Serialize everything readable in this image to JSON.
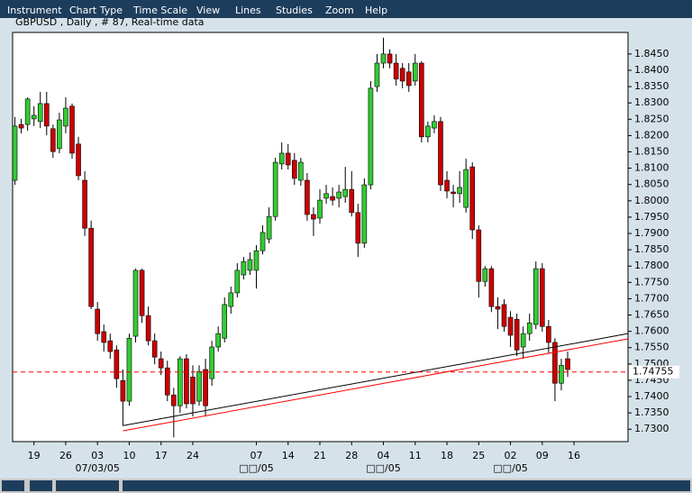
{
  "menu": [
    "Instrument",
    "Chart Type",
    "Time Scale",
    "View",
    "Lines",
    "Studies",
    "Zoom",
    "Help"
  ],
  "chart_data": {
    "type": "candlestick",
    "title": "GBPUSD , Daily , # 87, Real-time data",
    "categories": [
      null,
      null,
      null,
      "19",
      null,
      null,
      null,
      null,
      "26",
      null,
      null,
      null,
      null,
      "03",
      null,
      null,
      null,
      null,
      "10",
      null,
      null,
      null,
      null,
      "17",
      null,
      null,
      null,
      null,
      "24",
      null,
      null,
      null,
      null,
      null,
      null,
      null,
      null,
      null,
      "07",
      null,
      null,
      null,
      null,
      "14",
      null,
      null,
      null,
      null,
      "21",
      null,
      null,
      null,
      null,
      "28",
      null,
      null,
      null,
      null,
      "04",
      null,
      null,
      null,
      null,
      "11",
      null,
      null,
      null,
      null,
      "18",
      null,
      null,
      null,
      null,
      "25",
      null,
      null,
      null,
      null,
      "02",
      null,
      null,
      null,
      null,
      "09",
      null,
      null,
      null,
      null,
      "16",
      null,
      null,
      null,
      null,
      null,
      null,
      null,
      null
    ],
    "categories2": [
      null,
      null,
      null,
      null,
      null,
      null,
      null,
      null,
      null,
      null,
      null,
      null,
      null,
      "07/03/05",
      null,
      null,
      null,
      null,
      null,
      null,
      null,
      null,
      null,
      null,
      null,
      null,
      null,
      null,
      null,
      null,
      null,
      null,
      null,
      null,
      null,
      null,
      null,
      null,
      "□□/05",
      null,
      null,
      null,
      null,
      null,
      null,
      null,
      null,
      null,
      null,
      null,
      null,
      null,
      null,
      null,
      null,
      null,
      null,
      null,
      "□□/05",
      null,
      null,
      null,
      null,
      null,
      null,
      null,
      null,
      null,
      null,
      null,
      null,
      null,
      null,
      null,
      null,
      null,
      null,
      null,
      "□□/05",
      null,
      null,
      null,
      null,
      null,
      null,
      null,
      null,
      null,
      null,
      null,
      null,
      null,
      null,
      null,
      null,
      null,
      null,
      null
    ],
    "open": [
      1.8063,
      1.8234,
      1.8234,
      1.8251,
      1.8243,
      1.8298,
      1.8221,
      1.816,
      1.8229,
      1.829,
      1.8174,
      1.8063,
      1.7916,
      1.7668,
      1.7599,
      1.7571,
      1.7543,
      1.7449,
      1.7386,
      1.7585,
      1.7787,
      1.7648,
      1.7571,
      1.7516,
      1.7488,
      1.7405,
      1.7372,
      1.7516,
      1.746,
      1.7386,
      1.7483,
      1.7455,
      1.7552,
      1.7579,
      1.7676,
      1.7718,
      1.7773,
      1.7787,
      1.7787,
      1.7847,
      1.7883,
      1.7952,
      1.8113,
      1.8146,
      1.8124,
      1.8063,
      1.8063,
      1.7958,
      1.7947,
      1.8008,
      1.8013,
      1.8008,
      1.8013,
      1.8035,
      1.7964,
      1.787,
      1.8049,
      1.835,
      1.8422,
      1.845,
      1.8422,
      1.8406,
      1.8395,
      1.8367,
      1.8422,
      1.8196,
      1.8223,
      1.8243,
      1.8063,
      1.8027,
      1.8022,
      1.798,
      1.8104,
      1.7911,
      1.7753,
      1.7792,
      1.7676,
      1.7682,
      1.7643,
      1.7637,
      1.7552,
      1.7593,
      1.7621,
      1.7792,
      1.7615,
      1.7566,
      1.7441,
      1.7516,
      null,
      null,
      null,
      null,
      null,
      null,
      null,
      null,
      null
    ],
    "high": [
      1.8257,
      1.8251,
      1.8317,
      1.829,
      1.8334,
      1.8334,
      1.8234,
      1.827,
      1.8317,
      1.8298,
      1.8196,
      1.8091,
      1.7939,
      1.769,
      1.7621,
      1.7593,
      1.7557,
      1.7483,
      1.7593,
      1.7792,
      1.7792,
      1.7676,
      1.7593,
      1.7538,
      1.751,
      1.7427,
      1.7524,
      1.753,
      1.7496,
      1.7496,
      1.7516,
      1.7571,
      1.7615,
      1.7704,
      1.7737,
      1.7809,
      1.7828,
      1.7842,
      1.7864,
      1.7925,
      1.798,
      1.8132,
      1.8179,
      1.8174,
      1.8146,
      1.8132,
      1.8085,
      1.798,
      1.8035,
      1.8049,
      1.8041,
      1.8049,
      1.8104,
      1.8091,
      1.7991,
      1.8069,
      1.8367,
      1.845,
      1.85,
      1.8464,
      1.845,
      1.8422,
      1.8422,
      1.845,
      1.8428,
      1.8243,
      1.8262,
      1.8257,
      1.8091,
      1.8049,
      1.8091,
      1.8129,
      1.8118,
      1.7925,
      1.78,
      1.78,
      1.7704,
      1.7698,
      1.7662,
      1.7654,
      1.7615,
      1.7654,
      1.7814,
      1.7809,
      1.7635,
      1.7579,
      1.7516,
      1.7538,
      null,
      null,
      null,
      null,
      null,
      null,
      null,
      null,
      null
    ],
    "low": [
      1.8049,
      1.8207,
      1.8215,
      1.8229,
      1.8223,
      1.8201,
      1.8132,
      1.8146,
      1.8207,
      1.8129,
      1.8063,
      1.7892,
      1.7668,
      1.7571,
      1.7538,
      1.7516,
      1.7427,
      1.7311,
      1.7372,
      1.7566,
      1.7626,
      1.7557,
      1.7499,
      1.7466,
      1.7386,
      1.7275,
      1.735,
      1.7364,
      1.7339,
      1.7372,
      1.7339,
      1.7433,
      1.7538,
      1.7566,
      1.7654,
      1.7704,
      1.7759,
      1.7773,
      1.7731,
      1.7836,
      1.787,
      1.7939,
      1.8096,
      1.8096,
      1.8049,
      1.8046,
      1.7939,
      1.7892,
      1.793,
      1.7991,
      1.7986,
      1.798,
      1.7994,
      1.7952,
      1.7828,
      1.7856,
      1.8035,
      1.8334,
      1.8406,
      1.8406,
      1.8353,
      1.8345,
      1.8334,
      1.8353,
      1.8179,
      1.8179,
      1.8207,
      1.803,
      1.8008,
      1.798,
      1.7994,
      1.7964,
      1.7883,
      1.7704,
      1.7737,
      1.7659,
      1.7607,
      1.7599,
      1.7552,
      1.7524,
      1.7516,
      1.7571,
      1.7607,
      1.7599,
      1.7532,
      1.7386,
      1.7419,
      1.746,
      null,
      null,
      null,
      null,
      null,
      null,
      null,
      null,
      null
    ],
    "close": [
      1.8229,
      1.8223,
      1.8312,
      1.8262,
      1.8298,
      1.8229,
      1.8151,
      1.8248,
      1.8284,
      1.8146,
      1.8077,
      1.7916,
      1.7676,
      1.7593,
      1.7566,
      1.7538,
      1.7455,
      1.7386,
      1.7579,
      1.7787,
      1.7648,
      1.7571,
      1.7521,
      1.7488,
      1.7405,
      1.7372,
      1.7516,
      1.7378,
      1.7378,
      1.7477,
      1.7372,
      1.7552,
      1.7593,
      1.7682,
      1.7718,
      1.7787,
      1.7814,
      1.782,
      1.7847,
      1.7903,
      1.7952,
      1.8118,
      1.8146,
      1.811,
      1.8069,
      1.8118,
      1.7958,
      1.7944,
      1.8002,
      1.8022,
      1.8002,
      1.8027,
      1.8035,
      1.7964,
      1.787,
      1.8049,
      1.8345,
      1.8422,
      1.845,
      1.8422,
      1.8373,
      1.8367,
      1.8353,
      1.8422,
      1.8196,
      1.8229,
      1.8243,
      1.8049,
      1.803,
      1.8022,
      1.8041,
      1.8096,
      1.7911,
      1.7753,
      1.7792,
      1.7676,
      1.7668,
      1.7615,
      1.7588,
      1.7543,
      1.7593,
      1.7626,
      1.7792,
      1.7615,
      1.7566,
      1.7441,
      1.7496,
      1.7483,
      null,
      null,
      null,
      null,
      null,
      null,
      null,
      null,
      null
    ],
    "up_color": "#33cc33",
    "down_color": "#cc0000",
    "ylim": [
      1.7262,
      1.8516
    ],
    "yticks": [
      {
        "value": 1.73,
        "label": "1.7300"
      },
      {
        "value": 1.735,
        "label": "1.7350"
      },
      {
        "value": 1.74,
        "label": "1.7400"
      },
      {
        "value": 1.745,
        "label": "1.7450"
      },
      {
        "value": 1.75,
        "label": "1.7500"
      },
      {
        "value": 1.755,
        "label": "1.7550"
      },
      {
        "value": 1.76,
        "label": "1.7600"
      },
      {
        "value": 1.765,
        "label": "1.7650"
      },
      {
        "value": 1.77,
        "label": "1.7700"
      },
      {
        "value": 1.775,
        "label": "1.7750"
      },
      {
        "value": 1.78,
        "label": "1.7800"
      },
      {
        "value": 1.785,
        "label": "1.7850"
      },
      {
        "value": 1.79,
        "label": "1.7900"
      },
      {
        "value": 1.795,
        "label": "1.7950"
      },
      {
        "value": 1.8,
        "label": "1.8000"
      },
      {
        "value": 1.805,
        "label": "1.8050"
      },
      {
        "value": 1.81,
        "label": "1.8100"
      },
      {
        "value": 1.815,
        "label": "1.8150"
      },
      {
        "value": 1.82,
        "label": "1.8200"
      },
      {
        "value": 1.825,
        "label": "1.8250"
      },
      {
        "value": 1.83,
        "label": "1.8300"
      },
      {
        "value": 1.835,
        "label": "1.8350"
      },
      {
        "value": 1.84,
        "label": "1.8400"
      },
      {
        "value": 1.845,
        "label": "1.8450"
      }
    ],
    "trendlines": [
      {
        "color": "#000000",
        "values": [
          1.7311,
          1.7593
        ]
      },
      {
        "color": "#ff0000",
        "values": [
          1.7295,
          1.7577
        ]
      }
    ],
    "price_line": {
      "value": 1.74755,
      "color": "#ff0000"
    }
  }
}
